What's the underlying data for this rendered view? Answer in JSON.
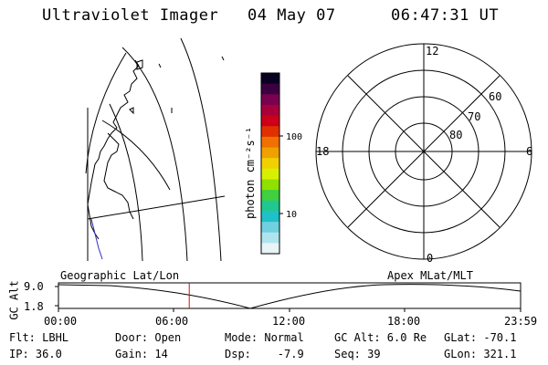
{
  "header": {
    "instrument": "Ultraviolet Imager",
    "date": "04 May 07",
    "time": "06:47:31 UT"
  },
  "colorbar": {
    "unit": "photon cm⁻²s⁻¹",
    "ticks": [
      "100",
      "10"
    ],
    "colors": [
      "#0a0022",
      "#3a0040",
      "#7a0050",
      "#a8003a",
      "#cc001a",
      "#e03000",
      "#f07000",
      "#f0a000",
      "#f0d000",
      "#d8f000",
      "#90e000",
      "#40d040",
      "#20c890",
      "#20c0c8",
      "#70d0e0",
      "#b0e4ec",
      "#e8f4f8"
    ]
  },
  "polar_plot": {
    "mlt_labels": {
      "top": "12",
      "left": "18",
      "right": "6",
      "bottom": "0"
    },
    "lat_labels": [
      "60",
      "70",
      "80"
    ]
  },
  "altitude_plot": {
    "ylabel": "GC Alt",
    "yticks": [
      "9.0",
      "1.8"
    ],
    "left_title": "Geographic Lat/Lon",
    "right_title": "Apex MLat/MLT",
    "xticks": [
      "00:00",
      "06:00",
      "12:00",
      "18:00",
      "23:59"
    ],
    "current_time_fraction": 0.283
  },
  "status": {
    "flt": "Flt: LBHL",
    "ip": "IP: 36.0",
    "door": "Door: Open",
    "gain": "Gain: 14",
    "mode": "Mode: Normal",
    "dsp": "Dsp:    -7.9",
    "gc_alt": "GC Alt: 6.0 Re",
    "seq": "Seq: 39",
    "glat": "GLat: -70.1",
    "glon": "GLon: 321.1"
  }
}
